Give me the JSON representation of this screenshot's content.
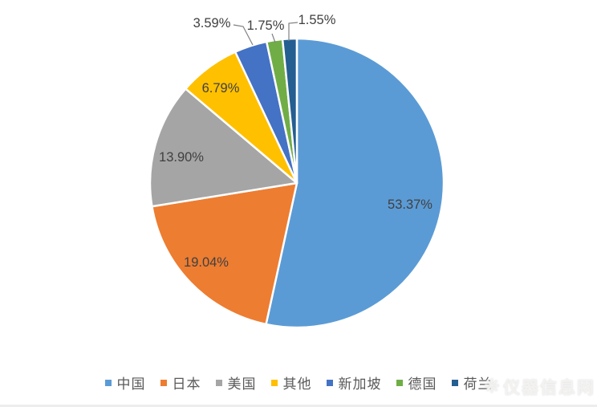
{
  "chart_data": {
    "type": "pie",
    "title": "",
    "value_format": "percent",
    "categories": [
      "中国",
      "日本",
      "美国",
      "其他",
      "新加坡",
      "德国",
      "荷兰"
    ],
    "values": [
      53.37,
      19.04,
      13.9,
      6.79,
      3.59,
      1.75,
      1.55
    ],
    "data_labels": [
      "53.37%",
      "19.04%",
      "13.90%",
      "6.79%",
      "3.59%",
      "1.75%",
      "1.55%"
    ],
    "colors": [
      "#5B9BD5",
      "#ED7D31",
      "#A5A5A5",
      "#FFC000",
      "#4472C4",
      "#70AD47",
      "#255E91"
    ],
    "label_placement": [
      "inside",
      "inside",
      "inside",
      "inside",
      "outside",
      "outside",
      "outside"
    ],
    "start_angle_deg": 0,
    "direction": "clockwise",
    "legend_position": "bottom",
    "grid": false,
    "label_color": "#404040",
    "legend_text_color": "#595959",
    "leader_line_color": "#808080",
    "slice_border_color": "#FFFFFF"
  },
  "watermark": {
    "text": "仪器信息网"
  }
}
